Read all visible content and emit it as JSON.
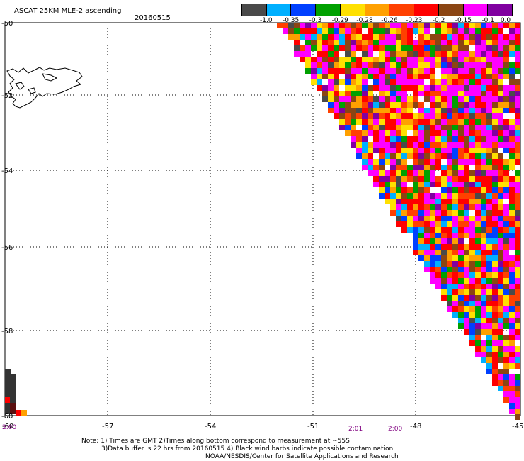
{
  "header": {
    "title": "ASCAT 25KM MLE-2 ascending",
    "date": "20160515"
  },
  "colorbar": {
    "colors": [
      "#4a4a4a",
      "#00b0ff",
      "#0040ff",
      "#00a000",
      "#ffe000",
      "#ffa000",
      "#ff4000",
      "#ff0000",
      "#8b4513",
      "#ff00ff",
      "#8000a0"
    ],
    "labels": [
      "-1.0",
      "-0.35",
      "-0.3",
      "-0.29",
      "-0.28",
      "-0.26",
      "-0.23",
      "-0.2",
      "-0.15",
      "-0.1",
      "0.0"
    ]
  },
  "axes": {
    "lat_labels": [
      "-50",
      "-52",
      "-54",
      "-56",
      "-58",
      "-60"
    ],
    "lon_labels": [
      "-60",
      "-57",
      "-54",
      "-51",
      "-48",
      "-45"
    ]
  },
  "times": [
    {
      "label": "2:00"
    },
    {
      "label": "2:01"
    },
    {
      "label": "2:00"
    }
  ],
  "notes": {
    "line1": "Note: 1) Times are GMT 2)Times along bottom correspond to measurement at ~55S",
    "line2": "3)Data buffer is 22 hrs from 20160515 4) Black wind barbs indicate possible contamination",
    "line3": "NOAA/NESDIS/Center for Satellite Applications and Research"
  }
}
